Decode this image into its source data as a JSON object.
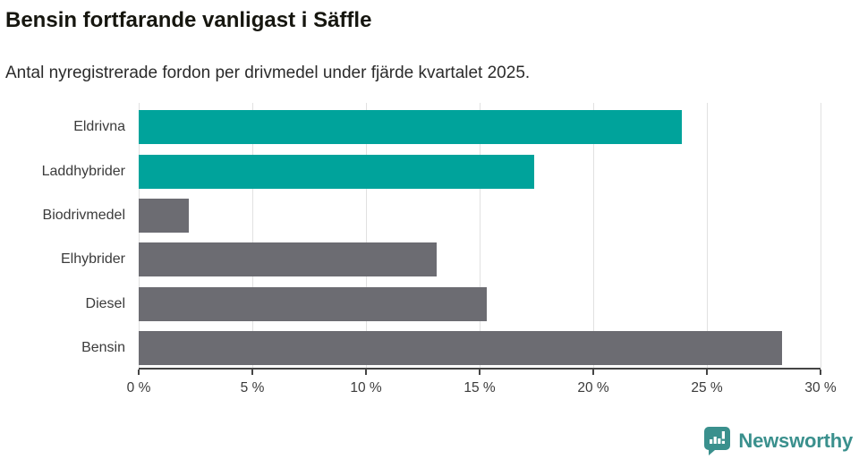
{
  "header": {
    "title": "Bensin fortfarande vanligast i Säffle",
    "subtitle": "Antal nyregistrerade fordon per drivmedel under fjärde kvartalet 2025."
  },
  "chart_data": {
    "type": "bar",
    "orientation": "horizontal",
    "title": "Bensin fortfarande vanligast i Säffle",
    "subtitle": "Antal nyregistrerade fordon per drivmedel under fjärde kvartalet 2025.",
    "categories": [
      "Eldrivna",
      "Laddhybrider",
      "Biodrivmedel",
      "Elhybrider",
      "Diesel",
      "Bensin"
    ],
    "values": [
      23.9,
      17.4,
      2.2,
      13.1,
      15.3,
      28.3
    ],
    "unit": "%",
    "bar_colors": [
      "#00A39B",
      "#00A39B",
      "#6C6C72",
      "#6C6C72",
      "#6C6C72",
      "#6C6C72"
    ],
    "xlabel": "",
    "ylabel": "",
    "xlim": [
      0,
      30
    ],
    "x_ticks": [
      0,
      5,
      10,
      15,
      20,
      25,
      30
    ],
    "x_tick_labels": [
      "0 %",
      "5 %",
      "10 %",
      "15 %",
      "20 %",
      "25 %",
      "30 %"
    ],
    "grid": true,
    "legend": false
  },
  "colors": {
    "accent_teal": "#00A39B",
    "bar_gray": "#6C6C72",
    "gridline": "#e1e1e1",
    "axis": "#454545",
    "logo_teal": "#3A908D"
  },
  "footer": {
    "brand": "Newsworthy"
  }
}
